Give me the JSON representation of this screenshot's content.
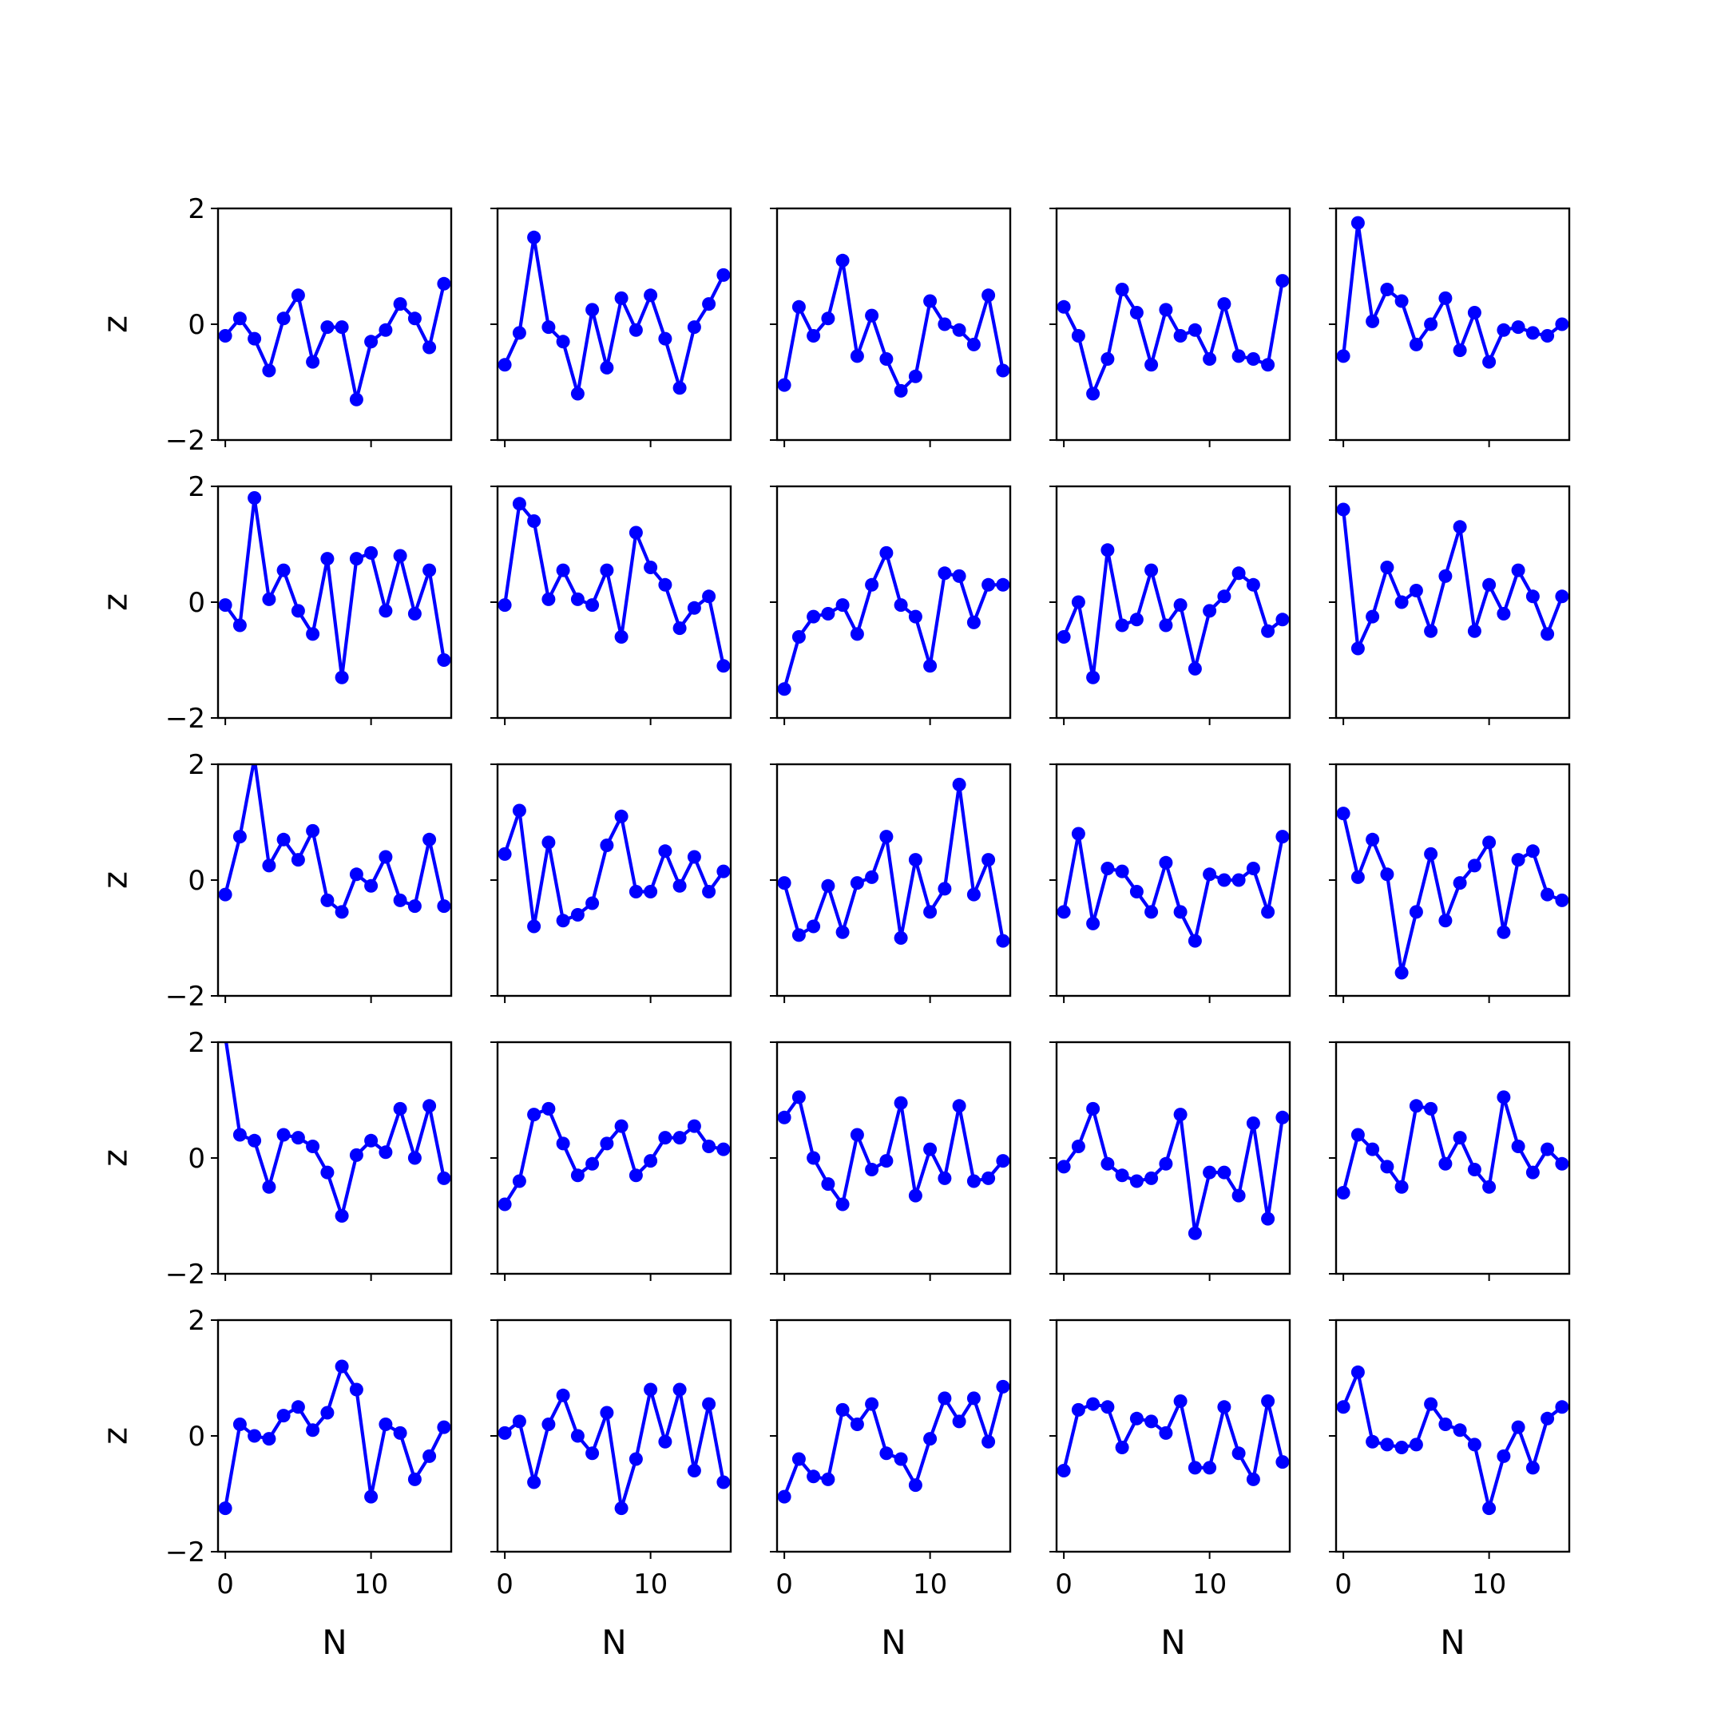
{
  "chart_data": {
    "type": "line",
    "layout": "5x5 grid of small multiples, shared x and y axes",
    "xlabel": "N",
    "ylabel": "z",
    "xlim": [
      -0.5,
      15.5
    ],
    "ylim": [
      -2,
      2
    ],
    "xticks": [
      0,
      10
    ],
    "yticks": [
      2,
      0,
      -2
    ],
    "ytick_labels": [
      "2",
      "0",
      "−2"
    ],
    "color": "#0000ff",
    "marker": "circle",
    "grid": false,
    "x": [
      0,
      1,
      2,
      3,
      4,
      5,
      6,
      7,
      8,
      9,
      10,
      11,
      12,
      13,
      14,
      15
    ],
    "panels": [
      [
        {
          "values": [
            -0.2,
            0.1,
            -0.25,
            -0.8,
            0.1,
            0.5,
            -0.65,
            -0.05,
            -0.05,
            -1.3,
            -0.3,
            -0.1,
            0.35,
            0.1,
            -0.4,
            0.7
          ]
        },
        {
          "values": [
            -0.7,
            -0.15,
            1.5,
            -0.05,
            -0.3,
            -1.2,
            0.25,
            -0.75,
            0.45,
            -0.1,
            0.5,
            -0.25,
            -1.1,
            -0.05,
            0.35,
            0.85
          ]
        },
        {
          "values": [
            -1.05,
            0.3,
            -0.2,
            0.1,
            1.1,
            -0.55,
            0.15,
            -0.6,
            -1.15,
            -0.9,
            0.4,
            0.0,
            -0.1,
            -0.35,
            0.5,
            -0.8
          ]
        },
        {
          "values": [
            0.3,
            -0.2,
            -1.2,
            -0.6,
            0.6,
            0.2,
            -0.7,
            0.25,
            -0.2,
            -0.1,
            -0.6,
            0.35,
            -0.55,
            -0.6,
            -0.7,
            0.75
          ]
        },
        {
          "values": [
            -0.55,
            1.75,
            0.05,
            0.6,
            0.4,
            -0.35,
            0.0,
            0.45,
            -0.45,
            0.2,
            -0.65,
            -0.1,
            -0.05,
            -0.15,
            -0.2,
            0.0
          ]
        }
      ],
      [
        {
          "values": [
            -0.05,
            -0.4,
            1.8,
            0.05,
            0.55,
            -0.15,
            -0.55,
            0.75,
            -1.3,
            0.75,
            0.85,
            -0.15,
            0.8,
            -0.2,
            0.55,
            -1.0
          ]
        },
        {
          "values": [
            -0.05,
            1.7,
            1.4,
            0.05,
            0.55,
            0.05,
            -0.05,
            0.55,
            -0.6,
            1.2,
            0.6,
            0.3,
            -0.45,
            -0.1,
            0.1,
            -1.1
          ]
        },
        {
          "values": [
            -1.5,
            -0.6,
            -0.25,
            -0.2,
            -0.05,
            -0.55,
            0.3,
            0.85,
            -0.05,
            -0.25,
            -1.1,
            0.5,
            0.45,
            -0.35,
            0.3,
            0.3
          ]
        },
        {
          "values": [
            -0.6,
            0.0,
            -1.3,
            0.9,
            -0.4,
            -0.3,
            0.55,
            -0.4,
            -0.05,
            -1.15,
            -0.15,
            0.1,
            0.5,
            0.3,
            -0.5,
            -0.3
          ]
        },
        {
          "values": [
            1.6,
            -0.8,
            -0.25,
            0.6,
            0.0,
            0.2,
            -0.5,
            0.45,
            1.3,
            -0.5,
            0.3,
            -0.2,
            0.55,
            0.1,
            -0.55,
            0.1
          ]
        }
      ],
      [
        {
          "values": [
            -0.25,
            0.75,
            2.1,
            0.25,
            0.7,
            0.35,
            0.85,
            -0.35,
            -0.55,
            0.1,
            -0.1,
            0.4,
            -0.35,
            -0.45,
            0.7,
            -0.45
          ]
        },
        {
          "values": [
            0.45,
            1.2,
            -0.8,
            0.65,
            -0.7,
            -0.6,
            -0.4,
            0.6,
            1.1,
            -0.2,
            -0.2,
            0.5,
            -0.1,
            0.4,
            -0.2,
            0.15
          ]
        },
        {
          "values": [
            -0.05,
            -0.95,
            -0.8,
            -0.1,
            -0.9,
            -0.05,
            0.05,
            0.75,
            -1.0,
            0.35,
            -0.55,
            -0.15,
            1.65,
            -0.25,
            0.35,
            -1.05
          ]
        },
        {
          "values": [
            -0.55,
            0.8,
            -0.75,
            0.2,
            0.15,
            -0.2,
            -0.55,
            0.3,
            -0.55,
            -1.05,
            0.1,
            0.0,
            0.0,
            0.2,
            -0.55,
            0.75
          ]
        },
        {
          "values": [
            1.15,
            0.05,
            0.7,
            0.1,
            -1.6,
            -0.55,
            0.45,
            -0.7,
            -0.05,
            0.25,
            0.65,
            -0.9,
            0.35,
            0.5,
            -0.25,
            -0.35
          ]
        }
      ],
      [
        {
          "values": [
            2.1,
            0.4,
            0.3,
            -0.5,
            0.4,
            0.35,
            0.2,
            -0.25,
            -1.0,
            0.05,
            0.3,
            0.1,
            0.85,
            0.0,
            0.9,
            -0.35
          ]
        },
        {
          "values": [
            -0.8,
            -0.4,
            0.75,
            0.85,
            0.25,
            -0.3,
            -0.1,
            0.25,
            0.55,
            -0.3,
            -0.05,
            0.35,
            0.35,
            0.55,
            0.2,
            0.15
          ]
        },
        {
          "values": [
            0.7,
            1.05,
            0.0,
            -0.45,
            -0.8,
            0.4,
            -0.2,
            -0.05,
            0.95,
            -0.65,
            0.15,
            -0.35,
            0.9,
            -0.4,
            -0.35,
            -0.05
          ]
        },
        {
          "values": [
            -0.15,
            0.2,
            0.85,
            -0.1,
            -0.3,
            -0.4,
            -0.35,
            -0.1,
            0.75,
            -1.3,
            -0.25,
            -0.25,
            -0.65,
            0.6,
            -1.05,
            0.7
          ]
        },
        {
          "values": [
            -0.6,
            0.4,
            0.15,
            -0.15,
            -0.5,
            0.9,
            0.85,
            -0.1,
            0.35,
            -0.2,
            -0.5,
            1.05,
            0.2,
            -0.25,
            0.15,
            -0.1
          ]
        }
      ],
      [
        {
          "values": [
            -1.25,
            0.2,
            0.0,
            -0.05,
            0.35,
            0.5,
            0.1,
            0.4,
            1.2,
            0.8,
            -1.05,
            0.2,
            0.05,
            -0.75,
            -0.35,
            0.15
          ]
        },
        {
          "values": [
            0.05,
            0.25,
            -0.8,
            0.2,
            0.7,
            0.0,
            -0.3,
            0.4,
            -1.25,
            -0.4,
            0.8,
            -0.1,
            0.8,
            -0.6,
            0.55,
            -0.8
          ]
        },
        {
          "values": [
            -1.05,
            -0.4,
            -0.7,
            -0.75,
            0.45,
            0.2,
            0.55,
            -0.3,
            -0.4,
            -0.85,
            -0.05,
            0.65,
            0.25,
            0.65,
            -0.1,
            0.85
          ]
        },
        {
          "values": [
            -0.6,
            0.45,
            0.55,
            0.5,
            -0.2,
            0.3,
            0.25,
            0.05,
            0.6,
            -0.55,
            -0.55,
            0.5,
            -0.3,
            -0.75,
            0.6,
            -0.45
          ]
        },
        {
          "values": [
            0.5,
            1.1,
            -0.1,
            -0.15,
            -0.2,
            -0.15,
            0.55,
            0.2,
            0.1,
            -0.15,
            -1.25,
            -0.35,
            0.15,
            -0.55,
            0.3,
            0.5
          ]
        }
      ]
    ]
  }
}
